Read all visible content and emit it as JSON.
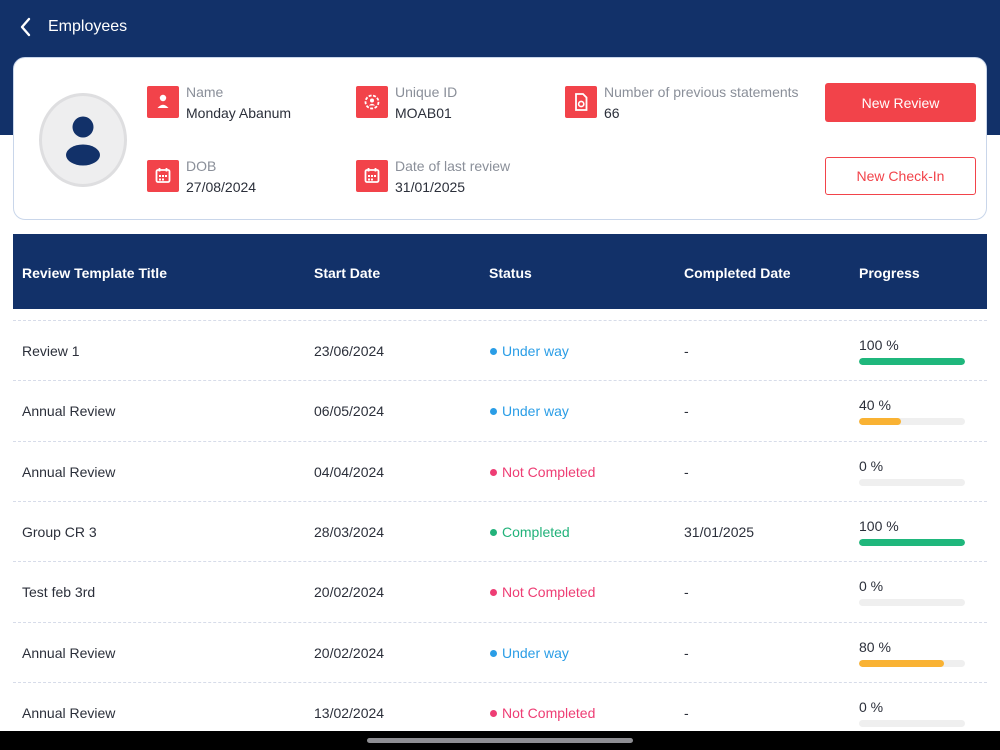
{
  "header": {
    "title": "Employees",
    "back_icon": "chevron-left-icon"
  },
  "profile": {
    "avatar_icon": "user-icon",
    "name_label": "Name",
    "name_value": "Monday Abanum",
    "unique_id_label": "Unique ID",
    "unique_id_value": "MOAB01",
    "prev_statements_label": "Number of previous statements",
    "prev_statements_value": "66",
    "dob_label": "DOB",
    "dob_value": "27/08/2024",
    "last_review_label": "Date of last review",
    "last_review_value": "31/01/2025",
    "new_review_label": "New Review",
    "new_checkin_label": "New Check-In"
  },
  "table": {
    "headers": {
      "title": "Review Template Title",
      "start": "Start Date",
      "status": "Status",
      "completed": "Completed Date",
      "progress": "Progress"
    },
    "rows": [
      {
        "title": "Review 1",
        "start": "23/06/2024",
        "status": "Under way",
        "status_key": "underway",
        "completed": "-",
        "progress_label": "100 %",
        "progress": 1.0
      },
      {
        "title": "Annual Review",
        "start": "06/05/2024",
        "status": "Under way",
        "status_key": "underway",
        "completed": "-",
        "progress_label": "40 %",
        "progress": 0.4
      },
      {
        "title": "Annual Review",
        "start": "04/04/2024",
        "status": "Not Completed",
        "status_key": "notcompleted",
        "completed": "-",
        "progress_label": "0 %",
        "progress": 0
      },
      {
        "title": "Group CR 3",
        "start": "28/03/2024",
        "status": "Completed",
        "status_key": "completed",
        "completed": "31/01/2025",
        "progress_label": "100 %",
        "progress": 1.0
      },
      {
        "title": "Test feb 3rd",
        "start": "20/02/2024",
        "status": "Not Completed",
        "status_key": "notcompleted",
        "completed": "-",
        "progress_label": "0 %",
        "progress": 0
      },
      {
        "title": "Annual Review",
        "start": "20/02/2024",
        "status": "Under way",
        "status_key": "underway",
        "completed": "-",
        "progress_label": "80 %",
        "progress": 0.8
      },
      {
        "title": "Annual Review",
        "start": "13/02/2024",
        "status": "Not Completed",
        "status_key": "notcompleted",
        "completed": "-",
        "progress_label": "0 %",
        "progress": 0
      }
    ]
  },
  "colors": {
    "navy": "#123169",
    "accent_red": "#f2434a",
    "status_underway": "#2a9de6",
    "status_notcompleted": "#ee3d74",
    "status_completed": "#22b27a",
    "progress_green": "#1fb77c",
    "progress_orange": "#f9b233"
  }
}
